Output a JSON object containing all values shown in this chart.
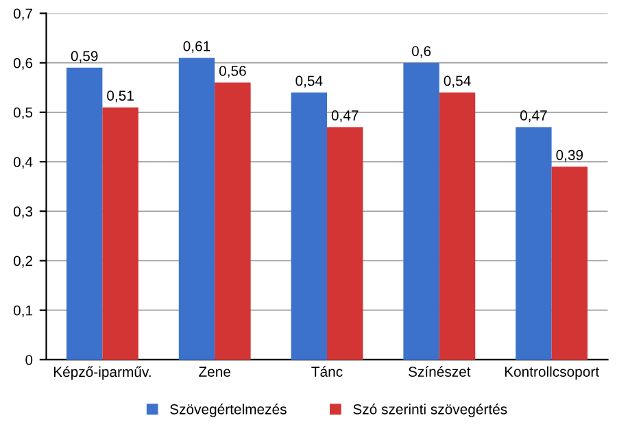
{
  "chart_data": {
    "type": "bar",
    "categories": [
      "Képző-iparműv.",
      "Zene",
      "Tánc",
      "Színészet",
      "Kontrollcsoport"
    ],
    "series": [
      {
        "name": "Szövegértelmezés",
        "color": "#3d72cc",
        "values": [
          0.59,
          0.61,
          0.54,
          0.6,
          0.47
        ],
        "value_labels": [
          "0,59",
          "0,61",
          "0,54",
          "0,6",
          "0,47"
        ]
      },
      {
        "name": "Szó szerinti szövegértés",
        "color": "#d33434",
        "values": [
          0.51,
          0.56,
          0.47,
          0.54,
          0.39
        ],
        "value_labels": [
          "0,51",
          "0,56",
          "0,47",
          "0,54",
          "0,39"
        ]
      }
    ],
    "ylim": [
      0,
      0.7
    ],
    "yticks": [
      0,
      {
        "value": 0.1,
        "label": "0,1"
      },
      {
        "value": 0.2,
        "label": "0,2"
      },
      {
        "value": 0.3,
        "label": "0,3"
      },
      {
        "value": 0.4,
        "label": "0,4"
      },
      {
        "value": 0.5,
        "label": "0,5"
      },
      {
        "value": 0.6,
        "label": "0,6"
      },
      {
        "value": 0.7,
        "label": "0,7"
      }
    ],
    "grid": "y",
    "legend": "bottom"
  }
}
